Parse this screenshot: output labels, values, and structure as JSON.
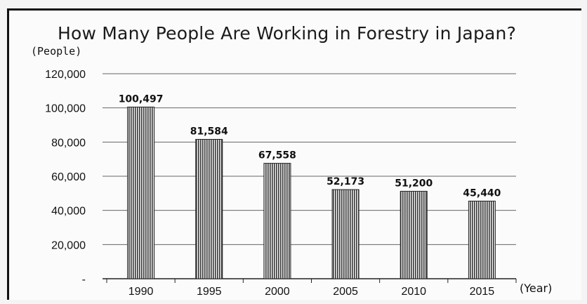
{
  "chart_data": {
    "type": "bar",
    "title": "How Many People Are Working in Forestry in Japan?",
    "ylabel": "(People)",
    "xlabel": "(Year)",
    "categories": [
      "1990",
      "1995",
      "2000",
      "2005",
      "2010",
      "2015"
    ],
    "values": [
      100497,
      81584,
      67558,
      52173,
      51200,
      45440
    ],
    "value_labels": [
      "100,497",
      "81,584",
      "67,558",
      "52,173",
      "51,200",
      "45,440"
    ],
    "ylim": [
      0,
      120000
    ],
    "yticks": [
      0,
      20000,
      40000,
      60000,
      80000,
      100000,
      120000
    ],
    "ytick_labels": [
      "-",
      "20,000",
      "40,000",
      "60,000",
      "80,000",
      "100,000",
      "120,000"
    ],
    "grid": true,
    "legend": "none",
    "colors": {
      "bar_fill": "#8a8a8a",
      "bar_stroke": "#222222",
      "grid": "#666666"
    }
  }
}
